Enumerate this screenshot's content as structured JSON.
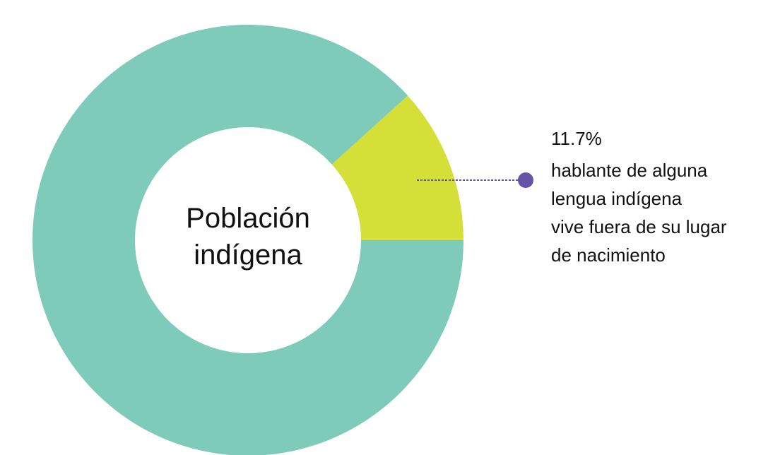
{
  "chart_data": {
    "type": "donut",
    "categories": [
      null,
      "hablante de alguna lengua indígena vive fuera de su lugar de nacimiento"
    ],
    "values": [
      88.3,
      11.7
    ],
    "value_labels": [
      null,
      "11.7%"
    ],
    "colors": [
      "#7ecbb9",
      "#d4df38"
    ],
    "center_label": [
      "Población",
      "indígena"
    ],
    "annotation_lines": [
      "hablante de alguna",
      "lengua indígena",
      "vive fuera de su lugar",
      "de nacimiento"
    ],
    "leader_color": "#6553a8"
  }
}
